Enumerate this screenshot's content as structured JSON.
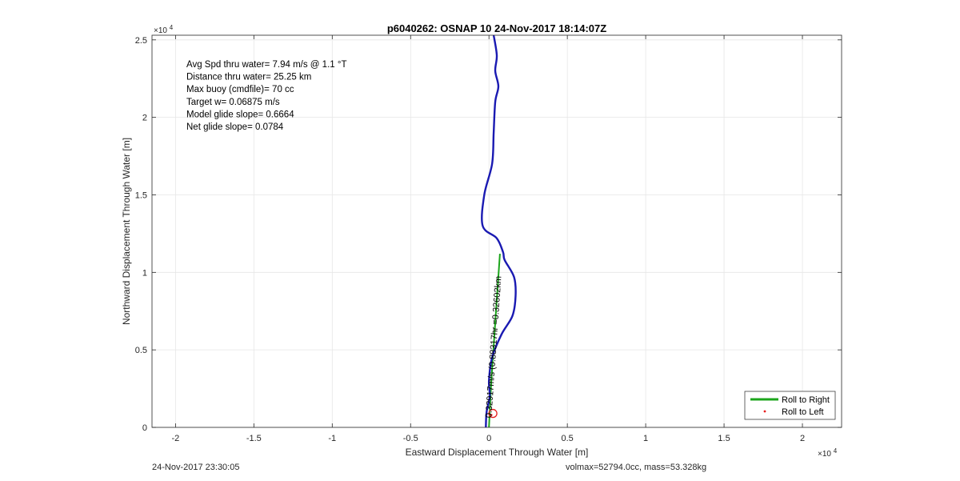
{
  "chart_data": {
    "type": "line",
    "title": "p6040262: OSNAP 10 24-Nov-2017 18:14:07Z",
    "xlabel": "Eastward Displacement Through Water [m]",
    "ylabel": "Northward Displacement Through Water [m]",
    "xlim": [
      -21500,
      22500
    ],
    "ylim": [
      0,
      25300
    ],
    "x_ticks": [
      -20000,
      -15000,
      -10000,
      -5000,
      0,
      5000,
      10000,
      15000,
      20000
    ],
    "x_tick_labels": [
      "-2",
      "-1.5",
      "-1",
      "-0.5",
      "0",
      "0.5",
      "1",
      "1.5",
      "2"
    ],
    "y_ticks": [
      0,
      5000,
      10000,
      15000,
      20000,
      25000
    ],
    "y_tick_labels": [
      "0",
      "0.5",
      "1",
      "1.5",
      "2",
      "2.5"
    ],
    "x_exponent_label": "×10",
    "x_exponent_power": "4",
    "y_exponent_label": "×10",
    "y_exponent_power": "4",
    "grid": true,
    "annotations": [
      "Avg Spd thru water=  7.94 m/s @   1.1 °T",
      "Distance thru water= 25.25 km",
      "Max buoy (cmdfile)= 70 cc",
      "Target w= 0.06875 m/s",
      "Model glide slope= 0.6664",
      "Net glide slope= 0.0784"
    ],
    "rotated_label": "0.32917m/s (0.88317hr =0.32602km",
    "series": [
      {
        "name": "Roll to Right",
        "color": "#1ca51c",
        "x": [
          0,
          150,
          350,
          550,
          700
        ],
        "y": [
          0,
          3000,
          6000,
          9000,
          11200
        ]
      },
      {
        "name": "Roll to Left",
        "color": "#e81c1c",
        "x": [
          150
        ],
        "y": [
          800
        ]
      },
      {
        "name": "",
        "color": "#1a1ab2",
        "x": [
          -200,
          -150,
          50,
          0,
          200,
          800,
          1500,
          1700,
          1600,
          1000,
          900,
          500,
          -400,
          -300,
          200,
          300,
          400,
          600,
          400,
          500,
          300
        ],
        "y": [
          0,
          1000,
          2000,
          3000,
          4500,
          6000,
          7200,
          8500,
          9700,
          10800,
          11300,
          12200,
          13000,
          15000,
          17000,
          19000,
          21000,
          22000,
          23000,
          24000,
          25300
        ]
      }
    ],
    "marker": {
      "x": 250,
      "y": 900,
      "color": "#e81c1c"
    },
    "legend": {
      "placement": "bottom-right",
      "entries": [
        "Roll to Right",
        "Roll to Left"
      ]
    }
  },
  "footer": {
    "left": "24-Nov-2017 23:30:05",
    "right": "volmax=52794.0cc, mass=53.328kg"
  }
}
